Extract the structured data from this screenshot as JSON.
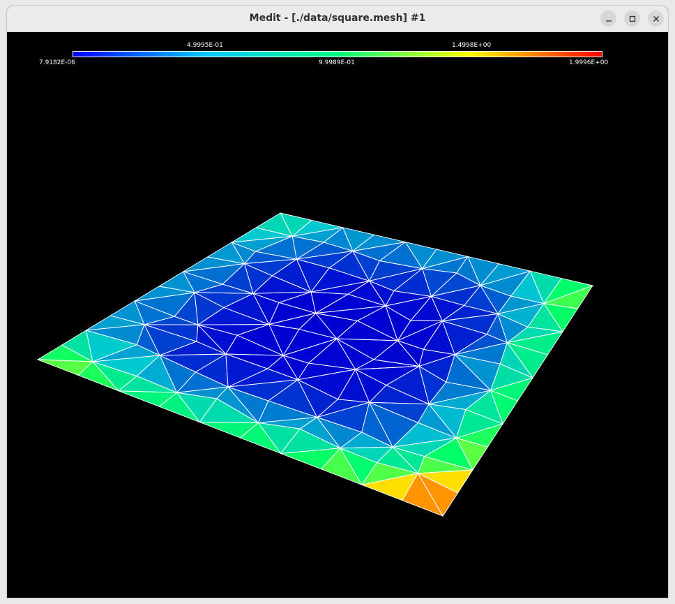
{
  "window": {
    "title": "Medit - [./data/square.mesh] #1",
    "controls": {
      "minimize": "minimize-icon",
      "maximize": "maximize-icon",
      "close": "close-icon"
    }
  },
  "legend": {
    "top_labels": [
      "4.9995E-01",
      "1.4998E+00"
    ],
    "bottom_labels": [
      "7.9182E-06",
      "9.9989E-01",
      "1.9996E+00"
    ],
    "colors": [
      "#0000ff",
      "#00c8ff",
      "#00ff80",
      "#ffff00",
      "#ff0000"
    ]
  },
  "mesh": {
    "name": "square.mesh",
    "wire_color": "#ffffff",
    "grid_divisions": 10
  }
}
